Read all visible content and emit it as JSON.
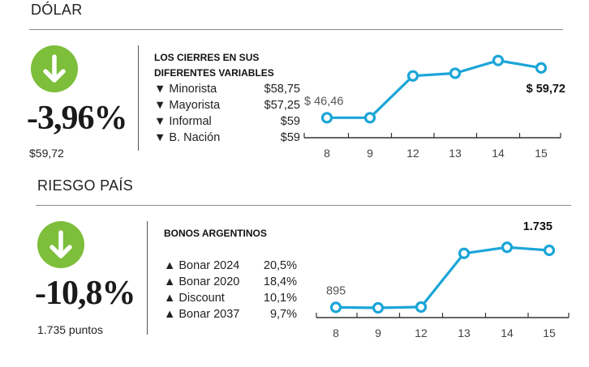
{
  "dolar": {
    "title": "DÓLAR",
    "change": "-3,96%",
    "value": "$59,72",
    "panel_heading_line1": "LOS CIERRES EN SUS",
    "panel_heading_line2": "DIFERENTES VARIABLES",
    "items": [
      {
        "marker": "▼",
        "label": "Minorista",
        "value": "$58,75"
      },
      {
        "marker": "▼",
        "label": "Mayorista",
        "value": "$57,25"
      },
      {
        "marker": "▼",
        "label": "Informal",
        "value": "$59"
      },
      {
        "marker": "▼",
        "label": "B. Nación",
        "value": "$59"
      }
    ]
  },
  "riesgo": {
    "title": "RIESGO PAÍS",
    "change": "-10,8%",
    "value": "1.735 puntos",
    "panel_heading": "BONOS ARGENTINOS",
    "items": [
      {
        "marker": "▲",
        "label": "Bonar 2024",
        "value": "20,5%"
      },
      {
        "marker": "▲",
        "label": "Bonar 2020",
        "value": "18,4%"
      },
      {
        "marker": "▲",
        "label": "Discount",
        "value": "10,1%"
      },
      {
        "marker": "▲",
        "label": "Bonar 2037",
        "value": "9,7%"
      }
    ]
  },
  "colors": {
    "badge": "#7dbe3a",
    "line": "#1ba5d8",
    "text": "#222222"
  },
  "icons": {
    "badge_icon": "arrow-down-icon"
  },
  "chart_data": [
    {
      "type": "line",
      "title": "",
      "x": [
        "8",
        "9",
        "12",
        "13",
        "14",
        "15"
      ],
      "series": [
        {
          "values": [
            46.46,
            46.46,
            57.6,
            58.3,
            61.7,
            59.72
          ]
        }
      ],
      "ylim": [
        42,
        64
      ],
      "grid": false,
      "labels": [
        {
          "index": 0,
          "text": "$ 46,46",
          "bold": false
        },
        {
          "index": 5,
          "text": "$ 59,72",
          "bold": true
        }
      ]
    },
    {
      "type": "line",
      "title": "",
      "x": [
        "8",
        "9",
        "12",
        "13",
        "14",
        "15"
      ],
      "series": [
        {
          "values": [
            895,
            888,
            900,
            1690,
            1780,
            1735
          ]
        }
      ],
      "ylim": [
        780,
        1950
      ],
      "grid": false,
      "labels": [
        {
          "index": 0,
          "text": "895",
          "bold": false
        },
        {
          "index": 5,
          "text": "1.735",
          "bold": true
        }
      ]
    }
  ]
}
